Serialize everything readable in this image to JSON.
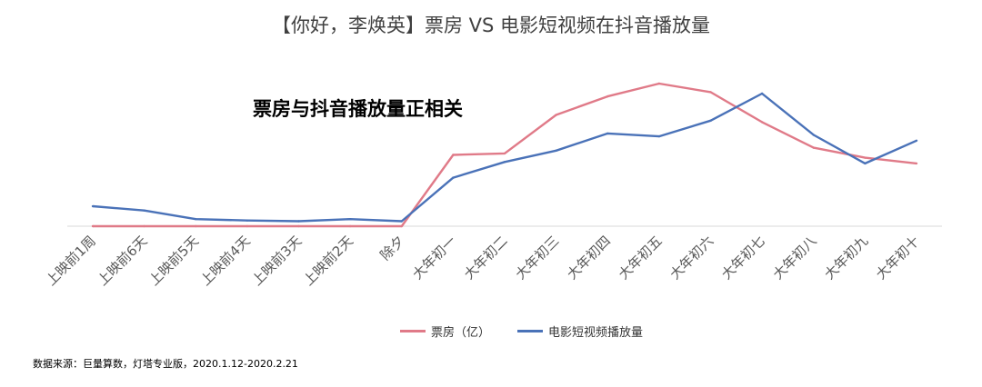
{
  "chart_data": {
    "type": "line",
    "title": "【你好，李焕英】票房 VS 电影短视频在抖音播放量",
    "annotation": "票房与抖音播放量正相关",
    "source": "数据来源：巨量算数，灯塔专业版，2020.1.12-2020.2.21",
    "categories": [
      "上映前1周",
      "上映前6天",
      "上映前5天",
      "上映前4天",
      "上映前3天",
      "上映前2天",
      "除夕",
      "大年初一",
      "大年初二",
      "大年初三",
      "大年初四",
      "大年初五",
      "大年初六",
      "大年初七",
      "大年初八",
      "大年初九",
      "大年初十"
    ],
    "series": [
      {
        "name": "票房（亿）",
        "color": "#e07a88",
        "values": [
          0,
          0,
          0,
          0,
          0,
          0,
          0,
          50,
          51,
          78,
          91,
          100,
          94,
          73,
          55,
          48,
          44
        ]
      },
      {
        "name": "电影短视频播放量",
        "color": "#4a72b8",
        "values": [
          14,
          11,
          5,
          4,
          3.5,
          5,
          3.5,
          34,
          45,
          53,
          65,
          63,
          74,
          93,
          64,
          44,
          60
        ]
      }
    ],
    "ylim": [
      0,
      100
    ],
    "legend_position": "bottom",
    "grid": false
  }
}
